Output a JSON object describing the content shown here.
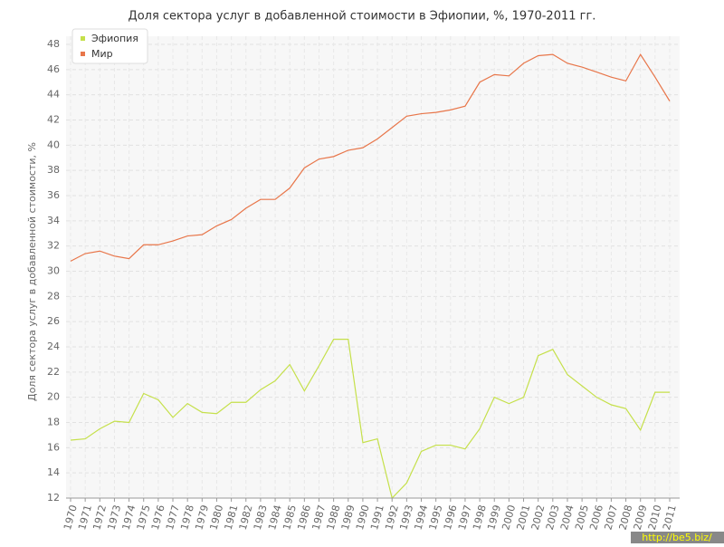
{
  "chart_data": {
    "type": "line",
    "title": "Доля сектора услуг в добавленной стоимости в Эфиопии, %, 1970-2011 гг.",
    "y_label": "Доля сектора услуг в добавленной стоимости, %",
    "categories": [
      "1970",
      "1971",
      "1972",
      "1973",
      "1974",
      "1975",
      "1976",
      "1977",
      "1978",
      "1979",
      "1980",
      "1981",
      "1982",
      "1983",
      "1984",
      "1985",
      "1986",
      "1987",
      "1988",
      "1989",
      "1990",
      "1991",
      "1992",
      "1993",
      "1994",
      "1995",
      "1996",
      "1997",
      "1998",
      "1999",
      "2000",
      "2001",
      "2002",
      "2003",
      "2004",
      "2005",
      "2006",
      "2007",
      "2008",
      "2009",
      "2010",
      "2011"
    ],
    "series": [
      {
        "name": "Эфиопия",
        "color": "#c5e04a",
        "values": [
          16.6,
          16.7,
          17.5,
          18.1,
          18.0,
          20.3,
          19.8,
          18.4,
          19.5,
          18.8,
          18.7,
          19.6,
          19.6,
          20.6,
          21.3,
          22.6,
          20.5,
          22.5,
          24.6,
          24.6,
          16.4,
          16.7,
          12.0,
          13.2,
          15.7,
          16.2,
          16.2,
          15.9,
          17.5,
          20.0,
          19.5,
          20.0,
          23.3,
          23.8,
          21.8,
          20.9,
          20.0,
          19.4,
          19.1,
          17.4,
          20.4,
          20.4
        ]
      },
      {
        "name": "Мир",
        "color": "#e8764a",
        "values": [
          30.8,
          31.4,
          31.6,
          31.2,
          31.0,
          32.1,
          32.1,
          32.4,
          32.8,
          32.9,
          33.6,
          34.1,
          35.0,
          35.7,
          35.7,
          36.6,
          38.2,
          38.9,
          39.1,
          39.6,
          39.8,
          40.5,
          41.4,
          42.3,
          42.5,
          42.6,
          42.8,
          43.1,
          45.0,
          45.6,
          45.5,
          46.5,
          47.1,
          47.2,
          46.5,
          46.2,
          45.8,
          45.4,
          45.1,
          47.2,
          45.4,
          43.5
        ]
      }
    ],
    "ylim": [
      12,
      48
    ],
    "yticks": [
      12,
      14,
      16,
      18,
      20,
      22,
      24,
      26,
      28,
      30,
      32,
      34,
      36,
      38,
      40,
      42,
      44,
      46,
      48
    ],
    "grid": true,
    "legend": "top-left",
    "watermark": "http://be5.biz/"
  }
}
